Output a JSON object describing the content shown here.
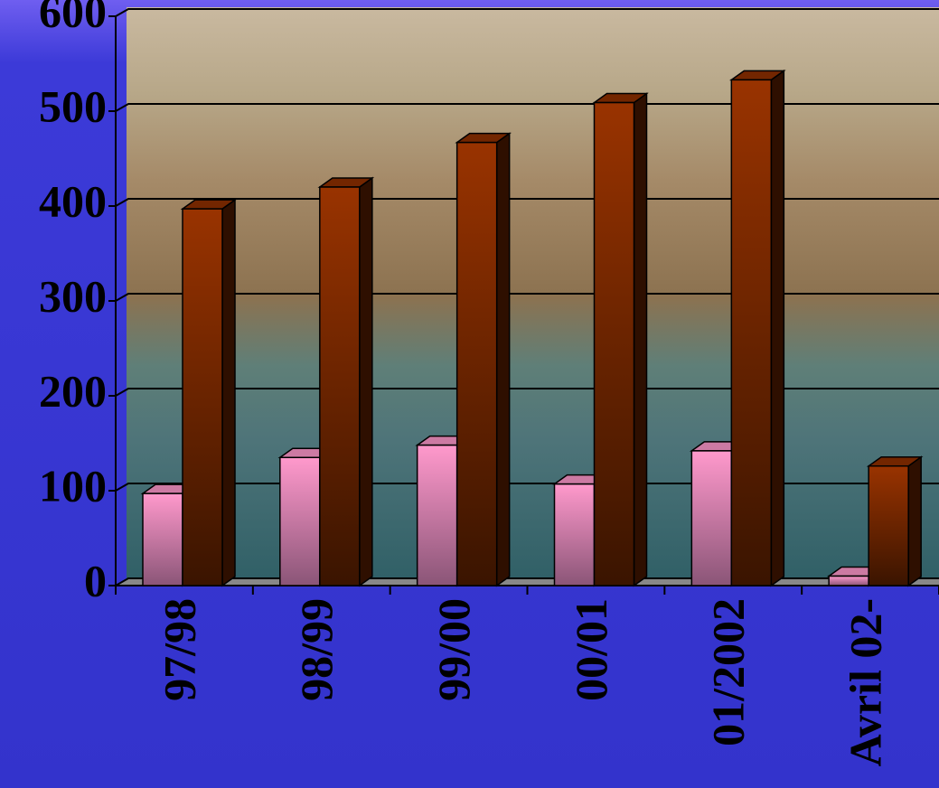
{
  "chart_data": {
    "type": "bar3d",
    "categories": [
      "97/98",
      "98/99",
      "99/00",
      "00/01",
      "01/2002",
      "Avril 02-"
    ],
    "series": [
      {
        "color": "#ff99cc",
        "values": [
          97,
          135,
          148,
          107,
          142,
          10
        ]
      },
      {
        "color": "#993300",
        "values": [
          397,
          420,
          467,
          509,
          533,
          126
        ]
      }
    ],
    "ylim": [
      0,
      600
    ],
    "yticks": [
      0,
      100,
      200,
      300,
      400,
      500,
      600
    ],
    "grid": true
  }
}
